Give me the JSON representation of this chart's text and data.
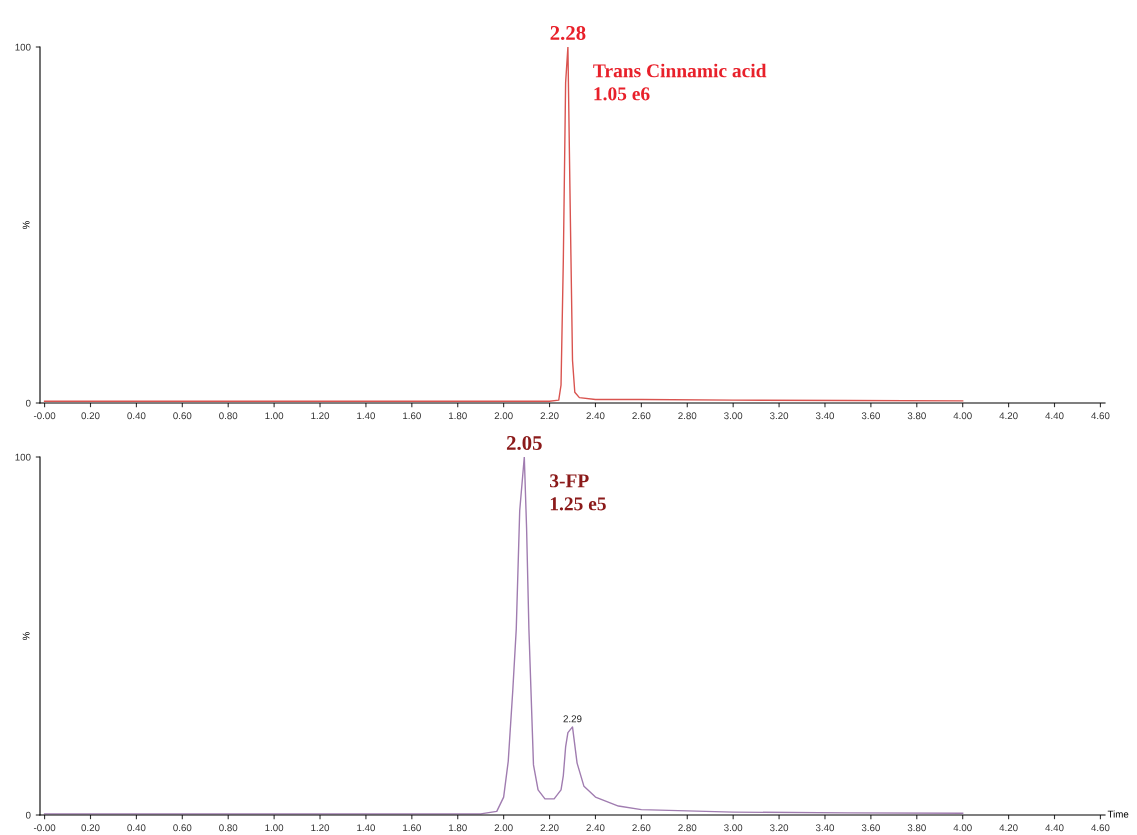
{
  "chart_data": [
    {
      "type": "line",
      "ylabel": "%",
      "xlim": [
        -0.02,
        4.62
      ],
      "ylim": [
        0,
        100
      ],
      "yticks": [
        0,
        100
      ],
      "xticks": [
        {
          "value": 0,
          "label": "-0.00"
        },
        {
          "value": 0.2,
          "label": "0.20"
        },
        {
          "value": 0.4,
          "label": "0.40"
        },
        {
          "value": 0.6,
          "label": "0.60"
        },
        {
          "value": 0.8,
          "label": "0.80"
        },
        {
          "value": 1.0,
          "label": "1.00"
        },
        {
          "value": 1.2,
          "label": "1.20"
        },
        {
          "value": 1.4,
          "label": "1.40"
        },
        {
          "value": 1.6,
          "label": "1.60"
        },
        {
          "value": 1.8,
          "label": "1.80"
        },
        {
          "value": 2.0,
          "label": "2.00"
        },
        {
          "value": 2.2,
          "label": "2.20"
        },
        {
          "value": 2.4,
          "label": "2.40"
        },
        {
          "value": 2.6,
          "label": "2.60"
        },
        {
          "value": 2.8,
          "label": "2.80"
        },
        {
          "value": 3.0,
          "label": "3.00"
        },
        {
          "value": 3.2,
          "label": "3.20"
        },
        {
          "value": 3.4,
          "label": "3.40"
        },
        {
          "value": 3.6,
          "label": "3.60"
        },
        {
          "value": 3.8,
          "label": "3.80"
        },
        {
          "value": 4.0,
          "label": "4.00"
        },
        {
          "value": 4.2,
          "label": "4.20"
        },
        {
          "value": 4.4,
          "label": "4.40"
        },
        {
          "value": 4.6,
          "label": "4.60"
        }
      ],
      "series": [
        {
          "color": "#d9534f",
          "x": [
            0,
            0.5,
            1.0,
            1.5,
            2.0,
            2.2,
            2.24,
            2.25,
            2.26,
            2.27,
            2.28,
            2.29,
            2.3,
            2.31,
            2.33,
            2.4,
            2.6,
            3.0,
            3.5,
            4.0
          ],
          "values": [
            0.5,
            0.5,
            0.5,
            0.5,
            0.5,
            0.5,
            0.8,
            5,
            40,
            90,
            100,
            55,
            12,
            3,
            1.5,
            1,
            1,
            0.8,
            0.7,
            0.6
          ]
        }
      ],
      "annotations": [
        {
          "text": "2.28",
          "x": 2.28,
          "y": 100
        },
        "Trans Cinnamic acid\n1.05 e6"
      ]
    },
    {
      "type": "line",
      "ylabel": "%",
      "xlabel": "Time",
      "xlim": [
        -0.02,
        4.62
      ],
      "ylim": [
        0,
        100
      ],
      "yticks": [
        0,
        100
      ],
      "xticks": [
        {
          "value": 0,
          "label": "-0.00"
        },
        {
          "value": 0.2,
          "label": "0.20"
        },
        {
          "value": 0.4,
          "label": "0.40"
        },
        {
          "value": 0.6,
          "label": "0.60"
        },
        {
          "value": 0.8,
          "label": "0.80"
        },
        {
          "value": 1.0,
          "label": "1.00"
        },
        {
          "value": 1.2,
          "label": "1.20"
        },
        {
          "value": 1.4,
          "label": "1.40"
        },
        {
          "value": 1.6,
          "label": "1.60"
        },
        {
          "value": 1.8,
          "label": "1.80"
        },
        {
          "value": 2.0,
          "label": "2.00"
        },
        {
          "value": 2.2,
          "label": "2.20"
        },
        {
          "value": 2.4,
          "label": "2.40"
        },
        {
          "value": 2.6,
          "label": "2.60"
        },
        {
          "value": 2.8,
          "label": "2.80"
        },
        {
          "value": 3.0,
          "label": "3.00"
        },
        {
          "value": 3.2,
          "label": "3.20"
        },
        {
          "value": 3.4,
          "label": "3.40"
        },
        {
          "value": 3.6,
          "label": "3.60"
        },
        {
          "value": 3.8,
          "label": "3.80"
        },
        {
          "value": 4.0,
          "label": "4.00"
        },
        {
          "value": 4.2,
          "label": "4.20"
        },
        {
          "value": 4.4,
          "label": "4.40"
        },
        {
          "value": 4.6,
          "label": "4.60"
        }
      ],
      "series": [
        {
          "color": "#a07cb0",
          "x": [
            0,
            0.5,
            1.0,
            1.5,
            1.9,
            1.97,
            2.0,
            2.02,
            2.04,
            2.055,
            2.07,
            2.09,
            2.1,
            2.11,
            2.13,
            2.15,
            2.18,
            2.22,
            2.25,
            2.26,
            2.27,
            2.28,
            2.3,
            2.32,
            2.35,
            2.4,
            2.5,
            2.6,
            3.0,
            3.5,
            4.0
          ],
          "values": [
            0.3,
            0.3,
            0.3,
            0.3,
            0.3,
            1,
            5,
            15,
            35,
            52,
            85,
            100,
            80,
            52,
            14,
            7,
            4.5,
            4.5,
            7,
            11,
            19,
            23,
            24.6,
            14.5,
            8,
            5,
            2.5,
            1.5,
            0.8,
            0.6,
            0.5
          ]
        }
      ],
      "annotations": [
        {
          "text": "2.05",
          "x": 2.09,
          "y": 100
        },
        "3-FP\n1.25 e5",
        {
          "text": "2.29",
          "x": 2.3,
          "y": 24.6
        }
      ]
    }
  ]
}
